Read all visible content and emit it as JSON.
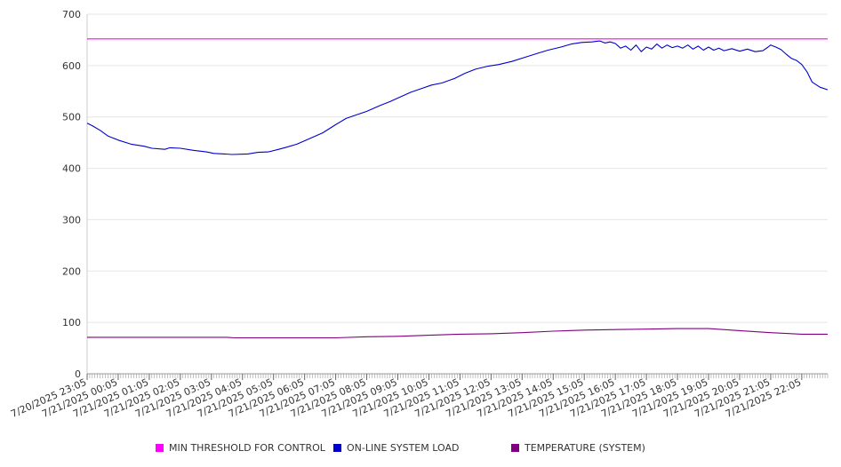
{
  "chart_data": {
    "type": "line",
    "title": "",
    "xlabel": "",
    "ylabel": "",
    "ylim": [
      0,
      700
    ],
    "yticks": [
      0,
      100,
      200,
      300,
      400,
      500,
      600,
      700
    ],
    "grid": true,
    "legend_position": "bottom",
    "x_start": "7/20/2025 23:05",
    "x_end": "7/21/2025 22:55",
    "x_tick_labels": [
      "7/20/2025 23:05",
      "7/21/2025 00:05",
      "7/21/2025 01:05",
      "7/21/2025 02:05",
      "7/21/2025 03:05",
      "7/21/2025 04:05",
      "7/21/2025 05:05",
      "7/21/2025 06:05",
      "7/21/2025 07:05",
      "7/21/2025 08:05",
      "7/21/2025 09:05",
      "7/21/2025 10:05",
      "7/21/2025 11:05",
      "7/21/2025 12:05",
      "7/21/2025 13:05",
      "7/21/2025 14:05",
      "7/21/2025 15:05",
      "7/21/2025 16:05",
      "7/21/2025 17:05",
      "7/21/2025 18:05",
      "7/21/2025 19:05",
      "7/21/2025 20:05",
      "7/21/2025 21:05",
      "7/21/2025 22:05"
    ],
    "series": [
      {
        "name": "MIN THRESHOLD FOR CONTROL",
        "color": "#ff00ff",
        "points": [
          [
            "7/20/2025 23:05",
            652
          ],
          [
            "7/21/2025 22:55",
            652
          ]
        ]
      },
      {
        "name": "ON-LINE SYSTEM LOAD",
        "color": "#0000cc",
        "points": [
          [
            "7/20/2025 23:05",
            488
          ],
          [
            "7/20/2025 23:15",
            483
          ],
          [
            "7/20/2025 23:30",
            474
          ],
          [
            "7/20/2025 23:45",
            463
          ],
          [
            "7/21/2025 00:05",
            455
          ],
          [
            "7/21/2025 00:30",
            447
          ],
          [
            "7/21/2025 00:55",
            443
          ],
          [
            "7/21/2025 01:10",
            439
          ],
          [
            "7/21/2025 01:35",
            437
          ],
          [
            "7/21/2025 01:45",
            440
          ],
          [
            "7/21/2025 02:05",
            439
          ],
          [
            "7/21/2025 02:30",
            435
          ],
          [
            "7/21/2025 02:55",
            432
          ],
          [
            "7/21/2025 03:10",
            429
          ],
          [
            "7/21/2025 03:30",
            428
          ],
          [
            "7/21/2025 03:45",
            427
          ],
          [
            "7/21/2025 04:15",
            428
          ],
          [
            "7/21/2025 04:35",
            431
          ],
          [
            "7/21/2025 04:55",
            432
          ],
          [
            "7/21/2025 05:15",
            437
          ],
          [
            "7/21/2025 05:30",
            441
          ],
          [
            "7/21/2025 05:50",
            447
          ],
          [
            "7/21/2025 06:15",
            458
          ],
          [
            "7/21/2025 06:40",
            469
          ],
          [
            "7/21/2025 07:05",
            485
          ],
          [
            "7/21/2025 07:25",
            497
          ],
          [
            "7/21/2025 07:45",
            504
          ],
          [
            "7/21/2025 08:05",
            511
          ],
          [
            "7/21/2025 08:30",
            522
          ],
          [
            "7/21/2025 08:50",
            530
          ],
          [
            "7/21/2025 09:10",
            539
          ],
          [
            "7/21/2025 09:30",
            548
          ],
          [
            "7/21/2025 09:50",
            555
          ],
          [
            "7/21/2025 10:10",
            562
          ],
          [
            "7/21/2025 10:30",
            566
          ],
          [
            "7/21/2025 10:55",
            575
          ],
          [
            "7/21/2025 11:15",
            585
          ],
          [
            "7/21/2025 11:35",
            593
          ],
          [
            "7/21/2025 12:00",
            599
          ],
          [
            "7/21/2025 12:20",
            602
          ],
          [
            "7/21/2025 12:45",
            608
          ],
          [
            "7/21/2025 13:10",
            616
          ],
          [
            "7/21/2025 13:35",
            624
          ],
          [
            "7/21/2025 13:55",
            630
          ],
          [
            "7/21/2025 14:20",
            636
          ],
          [
            "7/21/2025 14:40",
            642
          ],
          [
            "7/21/2025 15:00",
            645
          ],
          [
            "7/21/2025 15:20",
            646
          ],
          [
            "7/21/2025 15:35",
            648
          ],
          [
            "7/21/2025 15:45",
            644
          ],
          [
            "7/21/2025 15:55",
            646
          ],
          [
            "7/21/2025 16:05",
            643
          ],
          [
            "7/21/2025 16:15",
            634
          ],
          [
            "7/21/2025 16:25",
            638
          ],
          [
            "7/21/2025 16:35",
            630
          ],
          [
            "7/21/2025 16:45",
            640
          ],
          [
            "7/21/2025 16:55",
            627
          ],
          [
            "7/21/2025 17:05",
            636
          ],
          [
            "7/21/2025 17:15",
            632
          ],
          [
            "7/21/2025 17:25",
            642
          ],
          [
            "7/21/2025 17:35",
            634
          ],
          [
            "7/21/2025 17:45",
            640
          ],
          [
            "7/21/2025 17:55",
            635
          ],
          [
            "7/21/2025 18:05",
            638
          ],
          [
            "7/21/2025 18:15",
            634
          ],
          [
            "7/21/2025 18:25",
            640
          ],
          [
            "7/21/2025 18:35",
            632
          ],
          [
            "7/21/2025 18:45",
            638
          ],
          [
            "7/21/2025 18:55",
            630
          ],
          [
            "7/21/2025 19:05",
            636
          ],
          [
            "7/21/2025 19:15",
            630
          ],
          [
            "7/21/2025 19:25",
            634
          ],
          [
            "7/21/2025 19:35",
            629
          ],
          [
            "7/21/2025 19:50",
            633
          ],
          [
            "7/21/2025 20:05",
            628
          ],
          [
            "7/21/2025 20:20",
            632
          ],
          [
            "7/21/2025 20:35",
            627
          ],
          [
            "7/21/2025 20:50",
            629
          ],
          [
            "7/21/2025 21:00",
            636
          ],
          [
            "7/21/2025 21:05",
            640
          ],
          [
            "7/21/2025 21:15",
            636
          ],
          [
            "7/21/2025 21:25",
            631
          ],
          [
            "7/21/2025 21:35",
            622
          ],
          [
            "7/21/2025 21:45",
            614
          ],
          [
            "7/21/2025 21:55",
            610
          ],
          [
            "7/21/2025 22:05",
            602
          ],
          [
            "7/21/2025 22:15",
            588
          ],
          [
            "7/21/2025 22:25",
            568
          ],
          [
            "7/21/2025 22:40",
            558
          ],
          [
            "7/21/2025 22:55",
            553
          ]
        ]
      },
      {
        "name": "TEMPERATURE (SYSTEM)",
        "color": "#800080",
        "points": [
          [
            "7/20/2025 23:05",
            71
          ],
          [
            "7/21/2025 02:05",
            71
          ],
          [
            "7/21/2025 03:35",
            71
          ],
          [
            "7/21/2025 03:50",
            70
          ],
          [
            "7/21/2025 06:40",
            70
          ],
          [
            "7/21/2025 07:05",
            70
          ],
          [
            "7/21/2025 08:05",
            72
          ],
          [
            "7/21/2025 09:05",
            73
          ],
          [
            "7/21/2025 10:05",
            75
          ],
          [
            "7/21/2025 11:05",
            77
          ],
          [
            "7/21/2025 12:05",
            78
          ],
          [
            "7/21/2025 13:05",
            80
          ],
          [
            "7/21/2025 14:05",
            83
          ],
          [
            "7/21/2025 15:05",
            85
          ],
          [
            "7/21/2025 16:05",
            86
          ],
          [
            "7/21/2025 17:05",
            87
          ],
          [
            "7/21/2025 18:05",
            88
          ],
          [
            "7/21/2025 19:05",
            88
          ],
          [
            "7/21/2025 20:05",
            84
          ],
          [
            "7/21/2025 21:05",
            80
          ],
          [
            "7/21/2025 22:05",
            77
          ],
          [
            "7/21/2025 22:55",
            77
          ]
        ]
      }
    ]
  }
}
